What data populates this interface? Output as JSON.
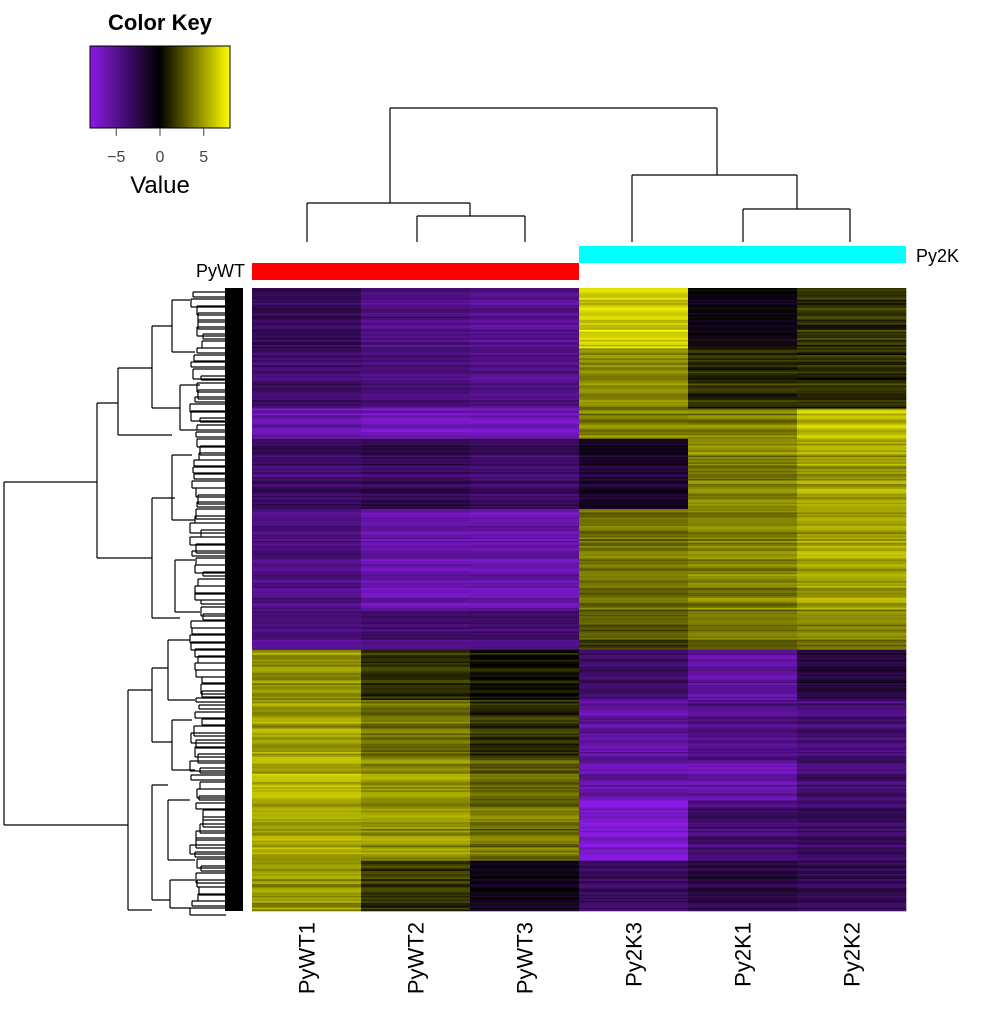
{
  "chart_data": {
    "type": "heatmap",
    "title": "",
    "columns": [
      "PyWT1",
      "PyWT2",
      "PyWT3",
      "Py2K3",
      "Py2K1",
      "Py2K2"
    ],
    "groups": [
      {
        "name": "PyWT",
        "columns": [
          "PyWT1",
          "PyWT2",
          "PyWT3"
        ],
        "color": "#ff0000"
      },
      {
        "name": "Py2K",
        "columns": [
          "Py2K3",
          "Py2K1",
          "Py2K2"
        ],
        "color": "#00ffff"
      }
    ],
    "color_key": {
      "title": "Color Key",
      "xlabel": "Value",
      "range": [
        -8,
        8
      ],
      "ticks": [
        -5,
        0,
        5
      ],
      "tick_labels": [
        "−5",
        "0",
        "5"
      ],
      "colors": [
        "#8a1be6",
        "#000000",
        "#ffff00"
      ]
    },
    "column_dendrogram": "((PyWT1,(PyWT2,PyWT3)),(Py2K3,(Py2K1,Py2K2)))",
    "row_blocks": [
      {
        "rows": 36,
        "values": [
          -3.0,
          -4.5,
          -5.0,
          6.5,
          -0.5,
          1.5
        ]
      },
      {
        "rows": 36,
        "values": [
          -3.5,
          -4.0,
          -4.5,
          4.5,
          1.5,
          1.5
        ]
      },
      {
        "rows": 18,
        "values": [
          -6.0,
          -6.5,
          -6.5,
          4.0,
          4.0,
          6.0
        ]
      },
      {
        "rows": 42,
        "values": [
          -3.5,
          -3.0,
          -3.5,
          -1.5,
          4.0,
          5.0
        ]
      },
      {
        "rows": 60,
        "values": [
          -4.5,
          -6.0,
          -6.0,
          3.5,
          4.0,
          5.0
        ]
      },
      {
        "rows": 24,
        "values": [
          -4.5,
          -4.0,
          -4.0,
          2.5,
          3.5,
          4.0
        ]
      },
      {
        "rows": 30,
        "values": [
          4.5,
          1.5,
          0.5,
          -3.5,
          -5.5,
          -2.0
        ]
      },
      {
        "rows": 36,
        "values": [
          5.0,
          3.5,
          1.5,
          -5.5,
          -4.5,
          -4.0
        ]
      },
      {
        "rows": 24,
        "values": [
          5.5,
          4.5,
          3.0,
          -6.0,
          -6.0,
          -4.0
        ]
      },
      {
        "rows": 36,
        "values": [
          5.0,
          4.5,
          3.5,
          -7.5,
          -4.0,
          -3.5
        ]
      },
      {
        "rows": 30,
        "values": [
          4.5,
          1.5,
          -1.0,
          -3.5,
          -2.5,
          -3.0
        ]
      }
    ]
  }
}
